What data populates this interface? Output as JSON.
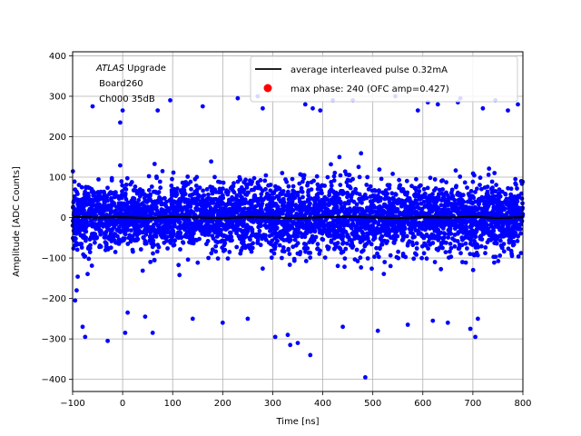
{
  "chart_data": {
    "type": "scatter",
    "xlabel": "Time [ns]",
    "ylabel": "Amplitude [ADC Counts]",
    "xlim": [
      -100,
      800
    ],
    "ylim": [
      -430,
      410
    ],
    "xticks": [
      -100,
      0,
      100,
      200,
      300,
      400,
      500,
      600,
      700,
      800
    ],
    "yticks": [
      -400,
      -300,
      -200,
      -100,
      0,
      100,
      200,
      300,
      400
    ],
    "xtick_labels": [
      "−100",
      "0",
      "100",
      "200",
      "300",
      "400",
      "500",
      "600",
      "700",
      "800"
    ],
    "ytick_labels": [
      "−400",
      "−300",
      "−200",
      "−100",
      "0",
      "100",
      "200",
      "300",
      "400"
    ],
    "grid": true,
    "legend_position": "top-right",
    "annotation": {
      "line1_italic": "ATLAS",
      "line1_rest": " Upgrade",
      "line2": " Board260",
      "line3": " Ch000 35dB"
    },
    "series": [
      {
        "name": "average interleaved pulse 0.32mA",
        "kind": "line",
        "color": "#000000",
        "x": [
          -100,
          -50,
          0,
          50,
          100,
          150,
          200,
          250,
          300,
          350,
          400,
          450,
          500,
          550,
          600,
          650,
          700,
          750,
          800
        ],
        "y": [
          2,
          0,
          1,
          -1,
          2,
          0,
          -1,
          1,
          0,
          -1,
          1,
          2,
          0,
          -1,
          1,
          0,
          2,
          -1,
          1
        ]
      },
      {
        "name": "max phase: 240 (OFC amp=0.427)",
        "kind": "scatter",
        "color": "#0000ff",
        "legend_color": "#ff0000",
        "core_std": 42,
        "outliers": [
          {
            "x": -95,
            "y": -205
          },
          {
            "x": -92,
            "y": -180
          },
          {
            "x": -80,
            "y": -270
          },
          {
            "x": -75,
            "y": -295
          },
          {
            "x": -60,
            "y": 275
          },
          {
            "x": -30,
            "y": -305
          },
          {
            "x": -5,
            "y": 235
          },
          {
            "x": 0,
            "y": 265
          },
          {
            "x": 5,
            "y": -285
          },
          {
            "x": 10,
            "y": -235
          },
          {
            "x": 45,
            "y": -245
          },
          {
            "x": 60,
            "y": -285
          },
          {
            "x": 70,
            "y": 265
          },
          {
            "x": 95,
            "y": 290
          },
          {
            "x": 160,
            "y": 275
          },
          {
            "x": 230,
            "y": 295
          },
          {
            "x": 250,
            "y": -250
          },
          {
            "x": 270,
            "y": 300
          },
          {
            "x": 280,
            "y": 270
          },
          {
            "x": 305,
            "y": -295
          },
          {
            "x": 330,
            "y": -290
          },
          {
            "x": 335,
            "y": -315
          },
          {
            "x": 350,
            "y": -310
          },
          {
            "x": 365,
            "y": 280
          },
          {
            "x": 375,
            "y": -340
          },
          {
            "x": 380,
            "y": 270
          },
          {
            "x": 395,
            "y": 265
          },
          {
            "x": 420,
            "y": 290
          },
          {
            "x": 460,
            "y": 290
          },
          {
            "x": 485,
            "y": -395
          },
          {
            "x": 510,
            "y": -280
          },
          {
            "x": 545,
            "y": 300
          },
          {
            "x": 570,
            "y": -265
          },
          {
            "x": 610,
            "y": 285
          },
          {
            "x": 620,
            "y": -255
          },
          {
            "x": 630,
            "y": 280
          },
          {
            "x": 650,
            "y": -260
          },
          {
            "x": 670,
            "y": 285
          },
          {
            "x": 675,
            "y": 295
          },
          {
            "x": 695,
            "y": -275
          },
          {
            "x": 705,
            "y": -295
          },
          {
            "x": 710,
            "y": -250
          },
          {
            "x": 745,
            "y": 290
          },
          {
            "x": 770,
            "y": 265
          },
          {
            "x": 790,
            "y": 280
          },
          {
            "x": 720,
            "y": 270
          },
          {
            "x": 440,
            "y": -270
          },
          {
            "x": 140,
            "y": -250
          },
          {
            "x": 590,
            "y": 265
          },
          {
            "x": 200,
            "y": -260
          }
        ]
      }
    ]
  }
}
